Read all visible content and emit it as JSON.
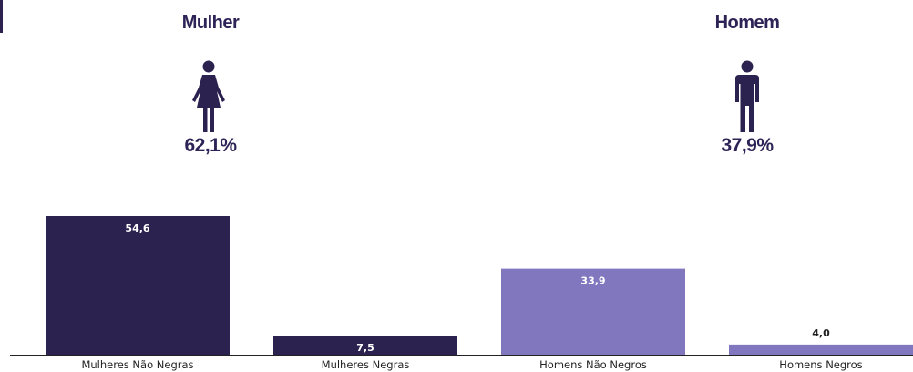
{
  "groups": [
    {
      "title": "Mulher",
      "percent": "62,1%",
      "icon": "woman-icon"
    },
    {
      "title": "Homem",
      "percent": "37,9%",
      "icon": "man-icon"
    }
  ],
  "colors": {
    "dark": "#2b2250",
    "light": "#8077bf",
    "text": "#2d2356"
  },
  "chart_data": {
    "type": "bar",
    "categories": [
      "Mulheres Não Negras",
      "Mulheres Negras",
      "Homens Não Negros",
      "Homens Negros"
    ],
    "values": [
      54.6,
      7.5,
      33.9,
      4.0
    ],
    "value_labels": [
      "54,6",
      "7,5",
      "33,9",
      "4,0"
    ],
    "bar_colors": [
      "#2b2250",
      "#2b2250",
      "#8077bf",
      "#8077bf"
    ],
    "ylim": [
      0,
      54.6
    ],
    "grid": false,
    "xlabel": "",
    "ylabel": ""
  }
}
